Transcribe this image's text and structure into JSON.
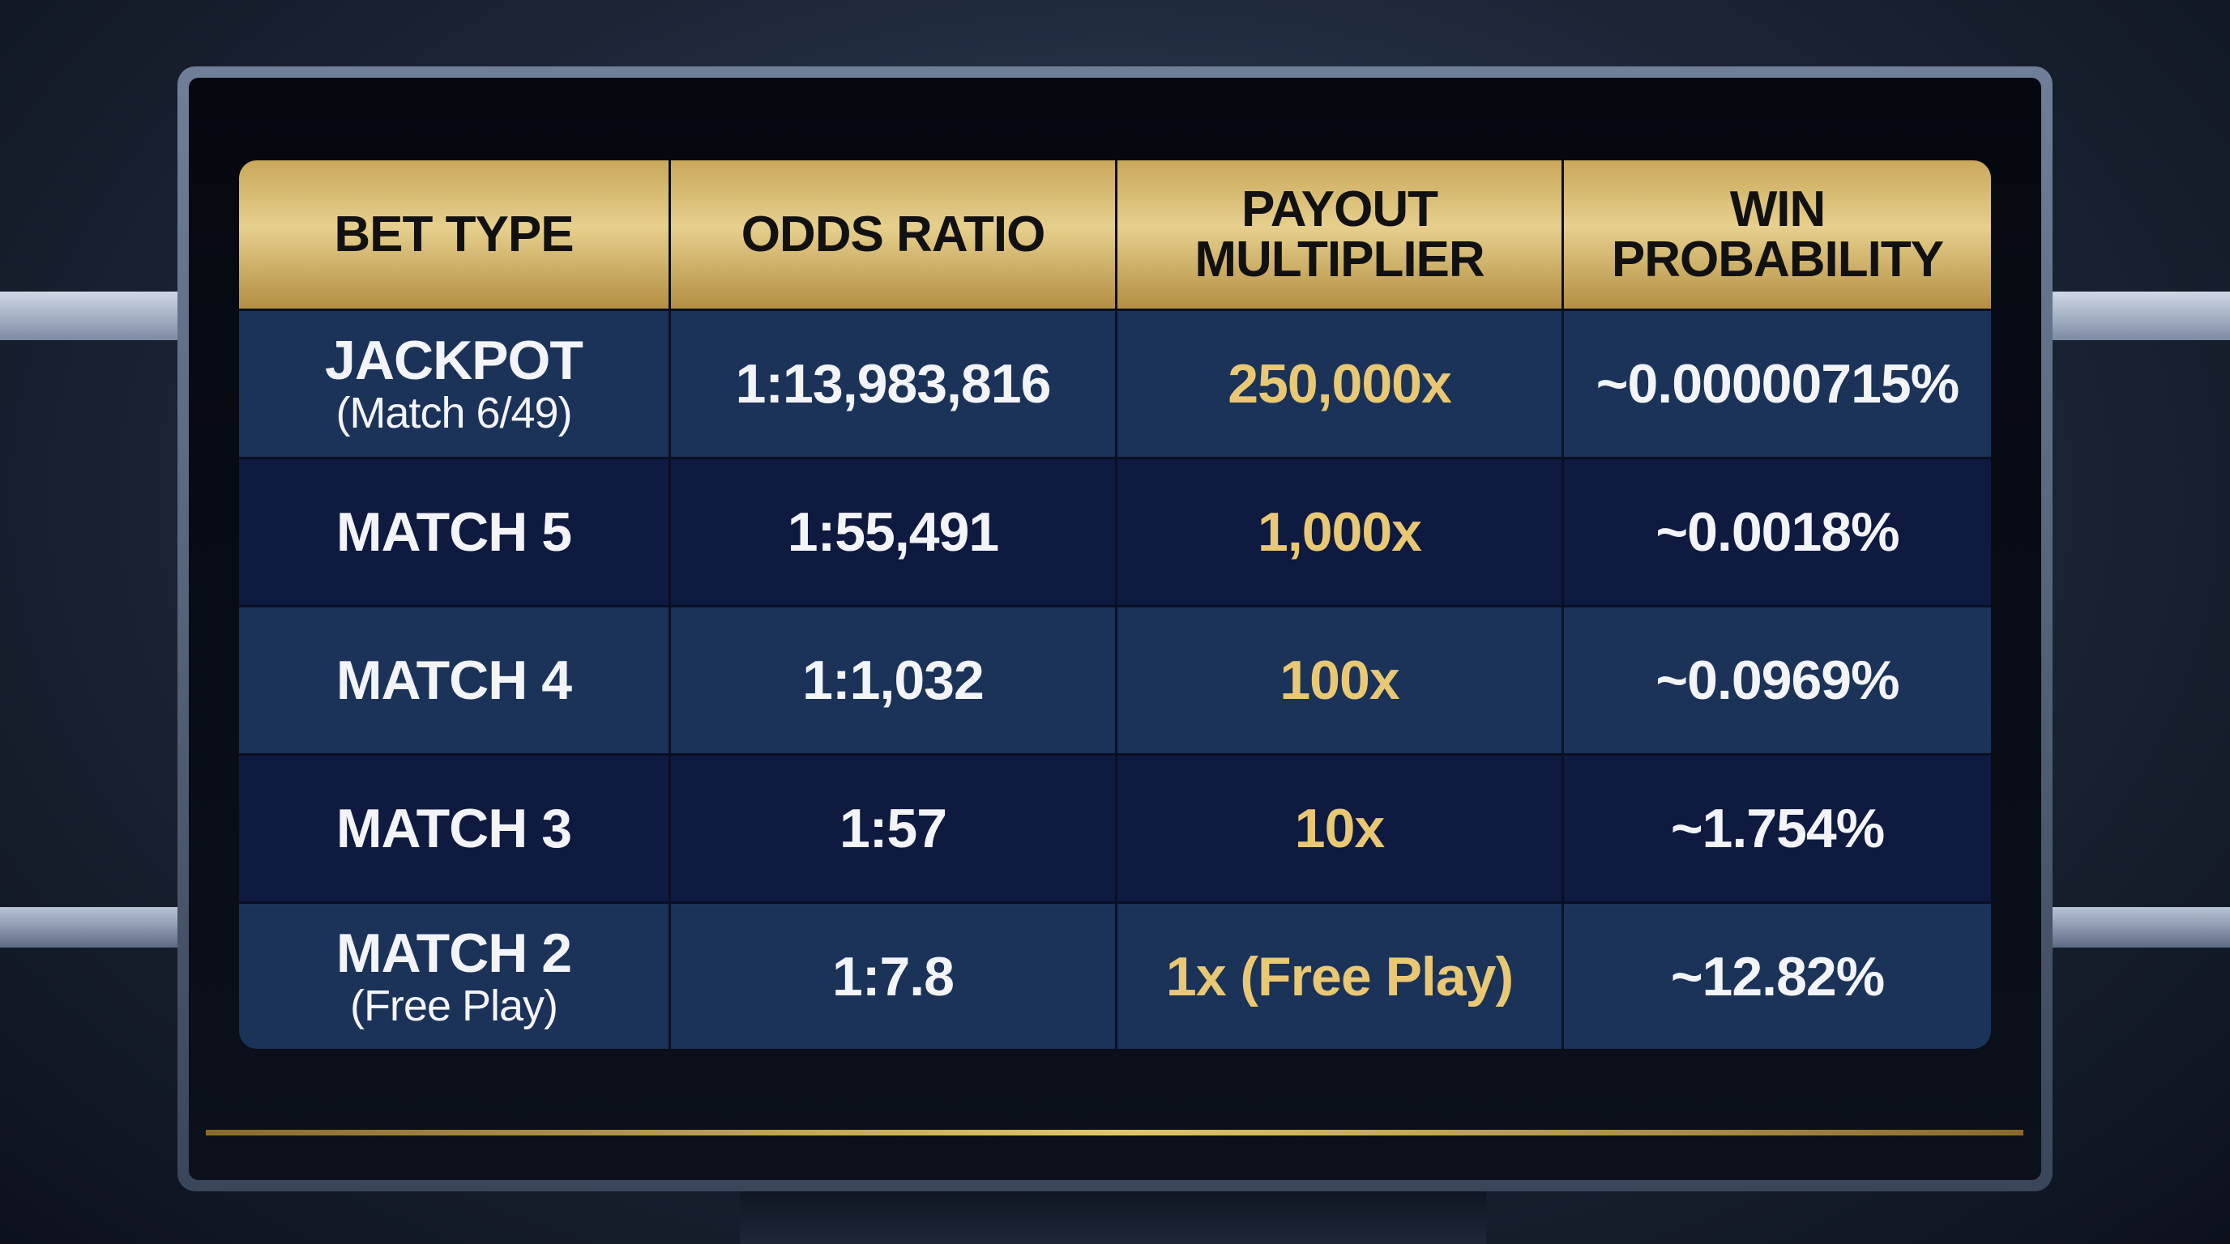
{
  "table": {
    "header": [
      "BET TYPE",
      "ODDS RATIO",
      "PAYOUT MULTIPLIER",
      "WIN PROBABILITY"
    ],
    "rows": [
      [
        [
          "JACKPOT",
          "(Match 6/49)"
        ],
        "1:13,983,816",
        "250,000x",
        "~0.00000715%"
      ],
      [
        [
          "MATCH 5"
        ],
        "1:55,491",
        "1,000x",
        "~0.0018%"
      ],
      [
        [
          "MATCH 4"
        ],
        "1:1,032",
        "100x",
        "~0.0969%"
      ],
      [
        [
          "MATCH 3"
        ],
        "1:57",
        "10x",
        "~1.754%"
      ],
      [
        [
          "MATCH 2",
          "(Free Play)"
        ],
        "1:7.8",
        "1x (Free Play)",
        "~12.82%"
      ]
    ]
  }
}
